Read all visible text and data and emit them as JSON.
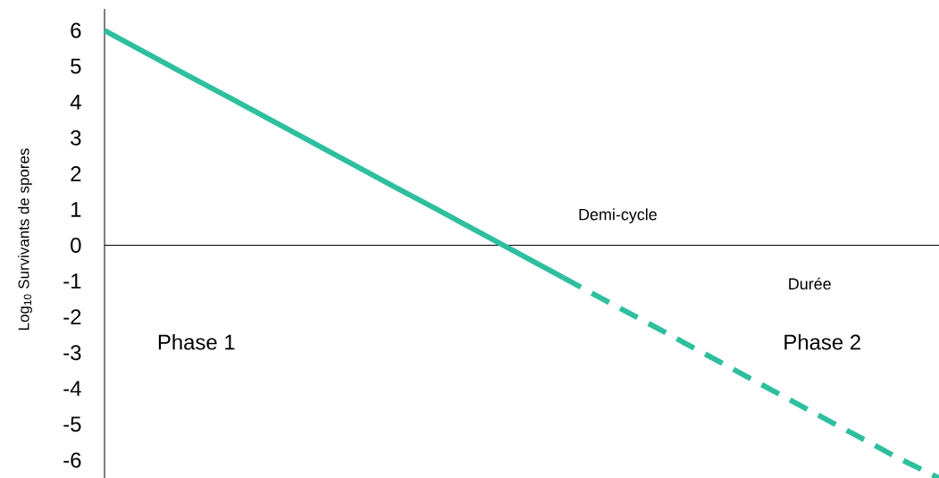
{
  "chart_data": {
    "type": "line",
    "ylabel": "Log$_{10}$ Survivants de spores",
    "xlabel": "Durée",
    "categories": [
      null,
      null,
      null,
      null,
      null,
      null,
      null,
      null,
      null,
      null,
      null,
      null,
      null,
      null,
      null,
      null,
      null,
      null,
      null,
      null,
      null
    ],
    "series": [
      {
        "color": "#2dbf9e",
        "line_style": "solid",
        "values": [
          6,
          5.37,
          4.74,
          4.12,
          3.49,
          2.86,
          2.23,
          1.6,
          0.98,
          0.35,
          -0.28,
          -0.91,
          null,
          null,
          null,
          null,
          null,
          null,
          null,
          null,
          null
        ]
      },
      {
        "color": "#2dbf9e",
        "line_style": "dashed",
        "values": [
          null,
          null,
          null,
          null,
          null,
          null,
          null,
          null,
          null,
          null,
          null,
          -0.91,
          -1.54,
          -2.16,
          -2.79,
          -3.42,
          -4.05,
          -4.68,
          -5.3,
          -5.93,
          -6.5
        ]
      }
    ],
    "ylim": [
      -6.5,
      6.6
    ],
    "yticks": [
      -6,
      -5,
      -4,
      -3,
      -2,
      -1,
      0,
      1,
      2,
      3,
      4,
      5,
      6
    ],
    "tick_labels": "y",
    "ref_lines": [
      {
        "axis": "y",
        "value": 0,
        "color": "#000000"
      }
    ],
    "annotations": [
      "Demi-cycle",
      "Phase 1",
      "Phase 2"
    ]
  }
}
